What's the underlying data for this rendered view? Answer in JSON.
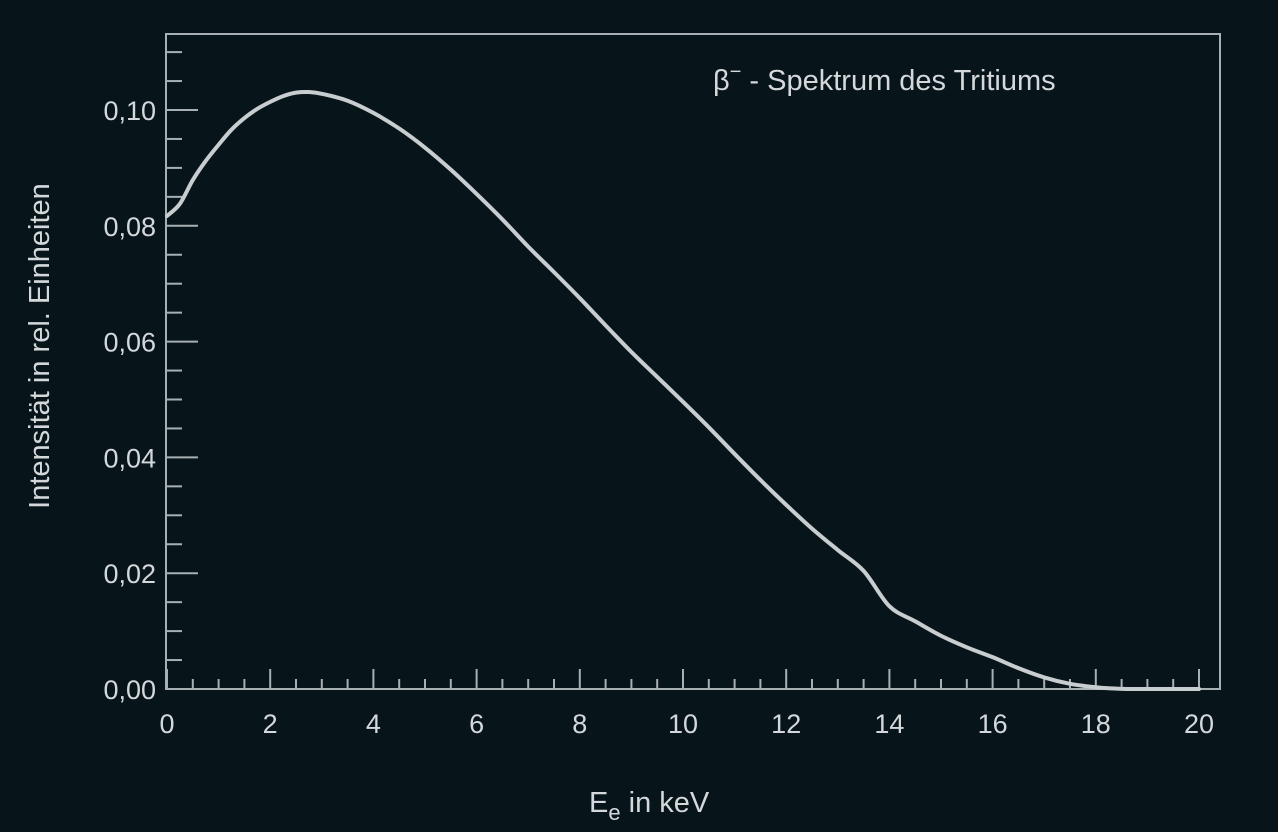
{
  "chart_data": {
    "type": "line",
    "title": "β⁻ - Spektrum des Tritiums",
    "title_parts": {
      "symbol": "β",
      "superscript": "−",
      "rest": " - Spektrum des Tritiums"
    },
    "xlabel": "E_e in keV",
    "xlabel_parts": {
      "main": "E",
      "subscript": "e",
      "rest": " in keV"
    },
    "ylabel": "Intensität in rel. Einheiten",
    "xlim": [
      0,
      20.4
    ],
    "ylim": [
      0,
      0.113
    ],
    "x_ticks": [
      0,
      2,
      4,
      6,
      8,
      10,
      12,
      14,
      16,
      18,
      20
    ],
    "x_tick_labels": [
      "0",
      "2",
      "4",
      "6",
      "8",
      "10",
      "12",
      "14",
      "16",
      "18",
      "20"
    ],
    "x_minor_step": 0.5,
    "y_ticks": [
      0,
      0.02,
      0.04,
      0.06,
      0.08,
      0.1
    ],
    "y_tick_labels": [
      "0,00",
      "0,02",
      "0,04",
      "0,06",
      "0,08",
      "0,10"
    ],
    "y_minor_step": 0.005,
    "grid": false,
    "legend": null,
    "series": [
      {
        "name": "β⁻ - Spektrum des Tritiums",
        "x": [
          0,
          0.25,
          0.5,
          0.75,
          1.0,
          1.25,
          1.5,
          1.75,
          2.0,
          2.25,
          2.5,
          2.75,
          3.0,
          3.5,
          4.0,
          4.5,
          5.0,
          5.5,
          6.0,
          6.5,
          7.0,
          7.5,
          8.0,
          8.5,
          9.0,
          9.5,
          10.0,
          10.5,
          11.0,
          11.5,
          12.0,
          12.5,
          13.0,
          13.5,
          14.0,
          14.5,
          15.0,
          15.5,
          16.0,
          16.5,
          17.0,
          17.5,
          18.0,
          18.3,
          18.6,
          19.0,
          20.0
        ],
        "values": [
          0.0817,
          0.0838,
          0.0879,
          0.0912,
          0.094,
          0.0966,
          0.0986,
          0.1002,
          0.1014,
          0.1024,
          0.103,
          0.1031,
          0.1028,
          0.1016,
          0.0995,
          0.0968,
          0.0935,
          0.0897,
          0.0855,
          0.0811,
          0.0764,
          0.072,
          0.0675,
          0.0628,
          0.0582,
          0.0539,
          0.0496,
          0.0452,
          0.0406,
          0.0361,
          0.0318,
          0.0277,
          0.024,
          0.0204,
          0.0143,
          0.0117,
          0.0092,
          0.0072,
          0.0055,
          0.0036,
          0.002,
          0.0009,
          0.0003,
          0.0001,
          0.0,
          0.0,
          0.0
        ]
      }
    ],
    "colors": {
      "background": "#07141a",
      "line": "#c8cdcf",
      "axis": "#a9b0b3",
      "text": "#d4d8da"
    }
  }
}
